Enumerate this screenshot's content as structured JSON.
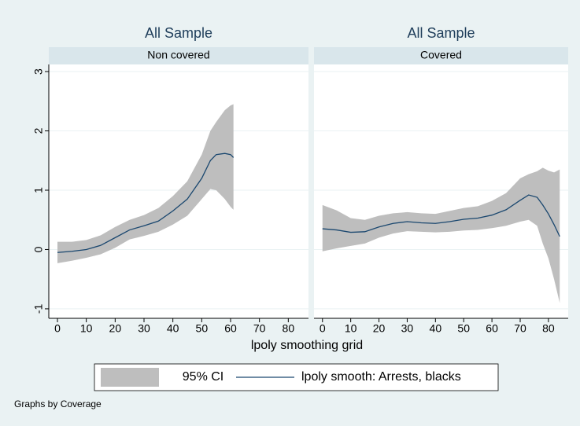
{
  "chart_data": [
    {
      "type": "band-line",
      "title": "All Sample",
      "subtitle": "Non covered",
      "x": [
        0,
        5,
        10,
        15,
        20,
        25,
        30,
        35,
        40,
        45,
        50,
        53,
        55,
        58,
        60,
        61
      ],
      "band": {
        "name": "95% CI",
        "color": "#bebebe",
        "upper": [
          0.13,
          0.13,
          0.16,
          0.24,
          0.38,
          0.5,
          0.58,
          0.7,
          0.9,
          1.15,
          1.6,
          2.0,
          2.15,
          2.35,
          2.43,
          2.45
        ],
        "lower": [
          -0.23,
          -0.19,
          -0.14,
          -0.08,
          0.03,
          0.17,
          0.23,
          0.3,
          0.42,
          0.57,
          0.85,
          1.02,
          1.0,
          0.85,
          0.72,
          0.67
        ]
      },
      "series": [
        {
          "name": "lpoly smooth: Arrests, blacks",
          "color": "#1a476f",
          "values": [
            -0.05,
            -0.03,
            0.0,
            0.07,
            0.2,
            0.33,
            0.4,
            0.48,
            0.65,
            0.85,
            1.2,
            1.5,
            1.6,
            1.62,
            1.6,
            1.55
          ]
        }
      ],
      "xlim": [
        -3,
        87
      ],
      "xticks": [
        0,
        10,
        20,
        30,
        40,
        50,
        60,
        70,
        80
      ],
      "ylim": [
        -1.16,
        3.12
      ],
      "yticks": [
        -1,
        0,
        1,
        2,
        3
      ],
      "y_axis_labels": true,
      "grid": true
    },
    {
      "type": "band-line",
      "title": "All Sample",
      "subtitle": "Covered",
      "x": [
        0,
        5,
        10,
        15,
        20,
        25,
        30,
        35,
        40,
        45,
        50,
        55,
        60,
        65,
        70,
        73,
        76,
        78,
        80,
        82,
        84
      ],
      "band": {
        "color": "#bebebe",
        "upper": [
          0.75,
          0.66,
          0.53,
          0.5,
          0.57,
          0.61,
          0.63,
          0.61,
          0.6,
          0.65,
          0.7,
          0.73,
          0.82,
          0.95,
          1.2,
          1.27,
          1.32,
          1.38,
          1.33,
          1.3,
          1.35
        ],
        "lower": [
          -0.03,
          0.02,
          0.06,
          0.1,
          0.2,
          0.27,
          0.31,
          0.3,
          0.29,
          0.3,
          0.32,
          0.33,
          0.36,
          0.4,
          0.47,
          0.5,
          0.4,
          0.1,
          -0.15,
          -0.5,
          -0.9
        ]
      },
      "series": [
        {
          "color": "#1a476f",
          "values": [
            0.35,
            0.33,
            0.29,
            0.3,
            0.38,
            0.44,
            0.47,
            0.45,
            0.44,
            0.47,
            0.51,
            0.53,
            0.58,
            0.67,
            0.83,
            0.92,
            0.88,
            0.75,
            0.6,
            0.42,
            0.22
          ]
        }
      ],
      "xlim": [
        -3,
        87
      ],
      "xticks": [
        0,
        10,
        20,
        30,
        40,
        50,
        60,
        70,
        80
      ],
      "ylim": [
        -1.16,
        3.12
      ],
      "yticks": [
        -1,
        0,
        1,
        2,
        3
      ],
      "y_axis_labels": false,
      "grid": true
    }
  ],
  "x_label": "lpoly smoothing grid",
  "note": "Graphs by Coverage"
}
